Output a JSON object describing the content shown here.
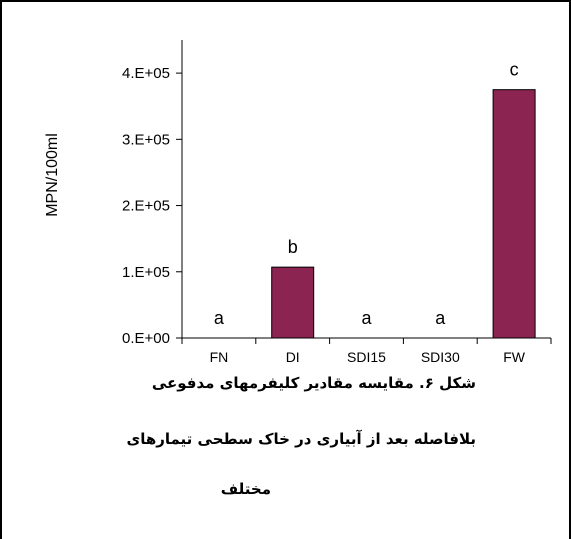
{
  "chart_data": {
    "type": "bar",
    "ylabel": "MPN/100ml",
    "xlabel": "",
    "title": "",
    "categories": [
      "FN",
      "DI",
      "SDI15",
      "SDI30",
      "FW"
    ],
    "values": [
      0,
      107000,
      0,
      0,
      375000
    ],
    "significance_letters": [
      "a",
      "b",
      "a",
      "a",
      "c"
    ],
    "ylim": [
      0,
      450000
    ],
    "yticks": [
      0,
      100000,
      200000,
      300000,
      400000
    ],
    "ytick_labels": [
      "0.E+00",
      "1.E+05",
      "2.E+05",
      "3.E+05",
      "4.E+05"
    ],
    "bar_color": "#8b2450",
    "bar_edge_color": "#000000",
    "grid": false,
    "legend": "none"
  },
  "caption": {
    "line1": "شکل ۶. مقایسه مقادیر کلیفرمهای مدفوعی",
    "line2": "بلافاصله بعد از آبیاری در خاک سطحی تیمارهای",
    "line3": "مختلف"
  }
}
